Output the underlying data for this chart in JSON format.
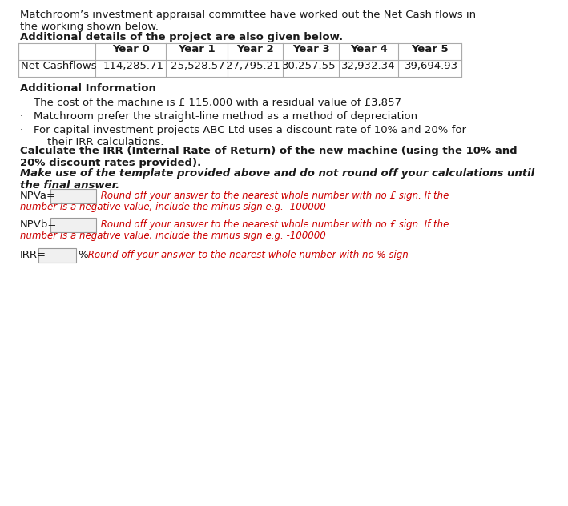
{
  "intro_text": "Matchroom’s investment appraisal committee have worked out the Net Cash flows in\nthe working shown below.",
  "bold_heading": "Additional details of the project are also given below.",
  "table_headers": [
    "",
    "Year 0",
    "Year 1",
    "Year 2",
    "Year 3",
    "Year 4",
    "Year 5"
  ],
  "table_row_label": "Net Cashflows",
  "table_row_sign": "-",
  "table_values": [
    "114,285.71",
    "25,528.57",
    "27,795.21",
    "30,257.55",
    "32,932.34",
    "39,694.93"
  ],
  "additional_info_heading": "Additional Information",
  "bullet_points": [
    "The cost of the machine is £ 115,000 with a residual value of £3,857",
    "Matchroom prefer the straight-line method as a method of depreciation",
    "For capital investment projects ABC Ltd uses a discount rate of 10% and 20% for\n    their IRR calculations."
  ],
  "calculate_text_bold": "Calculate the IRR (Internal Rate of Return) of the new machine (using the 10% and\n20% discount rates provided).",
  "make_use_text_italic": "Make use of the template provided above and do not round off your calculations until\nthe final answer.",
  "npva_label": "NPVa=",
  "npva_instruction": " Round off your answer to the nearest whole number with no £ sign. If the\nnumber is a negative value, include the minus sign e.g. -100000",
  "npvb_label": "NPVb=",
  "npvb_instruction": " Round off your answer to the nearest whole number with no £ sign. If the\nnumber is a negative value, include the minus sign e.g. -100000",
  "irr_label": "IRR=",
  "irr_percent": "%",
  "irr_instruction": " Round off your answer to the nearest whole number with no % sign",
  "bg_color": "#ffffff",
  "text_color": "#1a1a1a",
  "red_color": "#cc0000",
  "table_border_color": "#aaaaaa",
  "input_box_color": "#f0f0f0",
  "input_box_border": "#999999"
}
